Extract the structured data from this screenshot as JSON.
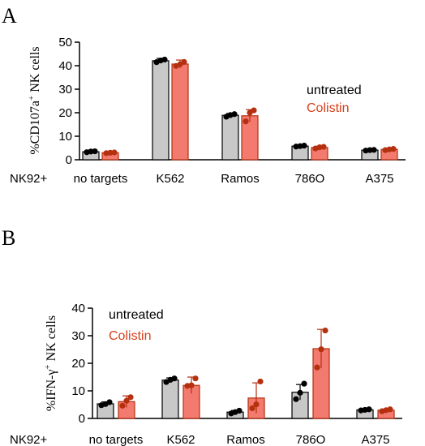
{
  "colors": {
    "untreated_bar": "#c8c8c8",
    "untreated_point": "#000000",
    "colistin_bar": "#f27a6e",
    "colistin_point": "#b5300f",
    "colistin_legend_text": "#d6401c",
    "axis": "#000000"
  },
  "chart_data": [
    {
      "panel_label": "A",
      "type": "bar",
      "ylabel": "%CD107a",
      "ylabel_superscript": "+",
      "ylabel_suffix": " NK cells",
      "row_label": "NK92+",
      "categories": [
        "no targets",
        "K562",
        "Ramos",
        "786O",
        "A375"
      ],
      "ylim": [
        0,
        50
      ],
      "yticks": [
        0,
        10,
        20,
        30,
        40,
        50
      ],
      "legend": {
        "entries": [
          "untreated",
          "Colistin"
        ],
        "placement": "right"
      },
      "series": [
        {
          "name": "untreated",
          "values": [
            3.4,
            42.1,
            18.9,
            5.8,
            4.1
          ],
          "errors": [
            0.4,
            1.0,
            0.8,
            0.4,
            0.3
          ],
          "points": [
            [
              3.2,
              3.5,
              3.6
            ],
            [
              41.5,
              42.2,
              42.6
            ],
            [
              18.3,
              19.0,
              19.4
            ],
            [
              5.6,
              5.8,
              6.0
            ],
            [
              3.9,
              4.1,
              4.2
            ]
          ]
        },
        {
          "name": "Colistin",
          "values": [
            3.0,
            40.7,
            18.7,
            5.2,
            4.4
          ],
          "errors": [
            0.4,
            1.7,
            2.6,
            0.5,
            0.3
          ],
          "points": [
            [
              2.8,
              3.0,
              3.1
            ],
            [
              39.9,
              40.6,
              41.6
            ],
            [
              16.3,
              20.0,
              21.0
            ],
            [
              4.8,
              5.3,
              5.5
            ],
            [
              4.1,
              4.4,
              4.6
            ]
          ]
        }
      ]
    },
    {
      "panel_label": "B",
      "type": "bar",
      "ylabel": "%IFN-γ",
      "ylabel_superscript": "+",
      "ylabel_suffix": " NK cells",
      "row_label": "NK92+",
      "categories": [
        "no targets",
        "K562",
        "Ramos",
        "786O",
        "A375"
      ],
      "ylim": [
        0,
        40
      ],
      "yticks": [
        0,
        10,
        20,
        30,
        40
      ],
      "legend": {
        "entries": [
          "untreated",
          "Colistin"
        ],
        "placement": "top-left"
      },
      "series": [
        {
          "name": "untreated",
          "values": [
            5.3,
            13.9,
            2.3,
            9.5,
            3.1
          ],
          "errors": [
            0.7,
            0.8,
            0.6,
            2.8,
            0.3
          ],
          "points": [
            [
              4.8,
              5.2,
              5.9
            ],
            [
              13.2,
              14.0,
              14.5
            ],
            [
              1.8,
              2.3,
              2.8
            ],
            [
              7.0,
              9.3,
              12.6
            ],
            [
              2.9,
              3.1,
              3.3
            ]
          ]
        },
        {
          "name": "Colistin",
          "values": [
            6.1,
            12.0,
            7.4,
            25.3,
            3.0
          ],
          "errors": [
            2.1,
            3.0,
            5.5,
            7.0,
            0.4
          ],
          "points": [
            [
              4.6,
              6.4,
              7.7
            ],
            [
              11.8,
              12.0,
              14.5
            ],
            [
              3.7,
              5.1,
              13.4
            ],
            [
              18.5,
              25.1,
              31.9
            ],
            [
              2.6,
              3.0,
              3.3
            ]
          ]
        }
      ]
    }
  ]
}
